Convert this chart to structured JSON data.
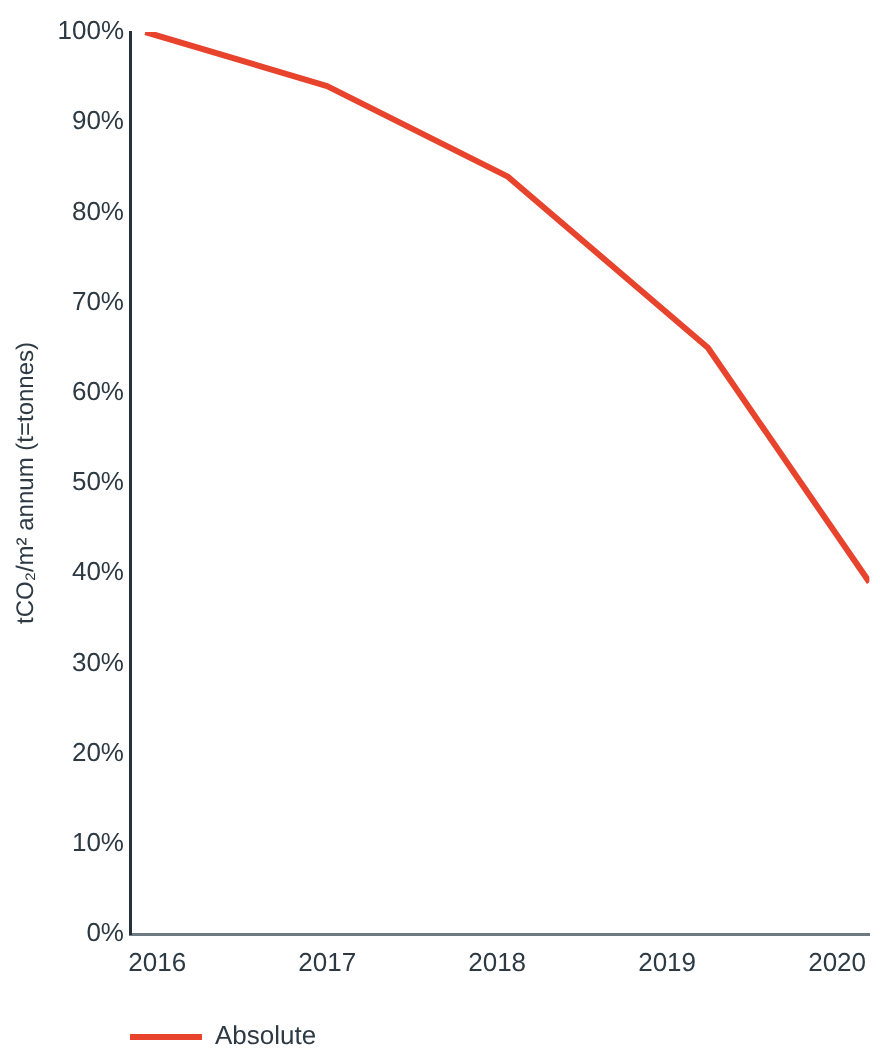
{
  "chart_data": {
    "type": "line",
    "x": [
      2015.93,
      2017,
      2018.06,
      2019.24,
      2020.19
    ],
    "series": [
      {
        "name": "Absolute",
        "color": "#e8432d",
        "values": [
          100,
          94,
          84,
          65,
          39
        ]
      }
    ],
    "xlim": [
      2015.84,
      2020.19
    ],
    "xticks": [
      2016,
      2017,
      2018,
      2019,
      2020
    ],
    "ylim": [
      0,
      100
    ],
    "yticks": [
      {
        "value": 0,
        "label": "0%"
      },
      {
        "value": 10,
        "label": "10%"
      },
      {
        "value": 20,
        "label": "20%"
      },
      {
        "value": 30,
        "label": "30%"
      },
      {
        "value": 40,
        "label": "40%"
      },
      {
        "value": 50,
        "label": "50%"
      },
      {
        "value": 60,
        "label": "60%"
      },
      {
        "value": 70,
        "label": "70%"
      },
      {
        "value": 80,
        "label": "80%"
      },
      {
        "value": 90,
        "label": "90%"
      },
      {
        "value": 100,
        "label": "100%"
      }
    ],
    "ylabel": "tCO₂/m² annum (t=tonnes)",
    "legend": "bottom left"
  }
}
